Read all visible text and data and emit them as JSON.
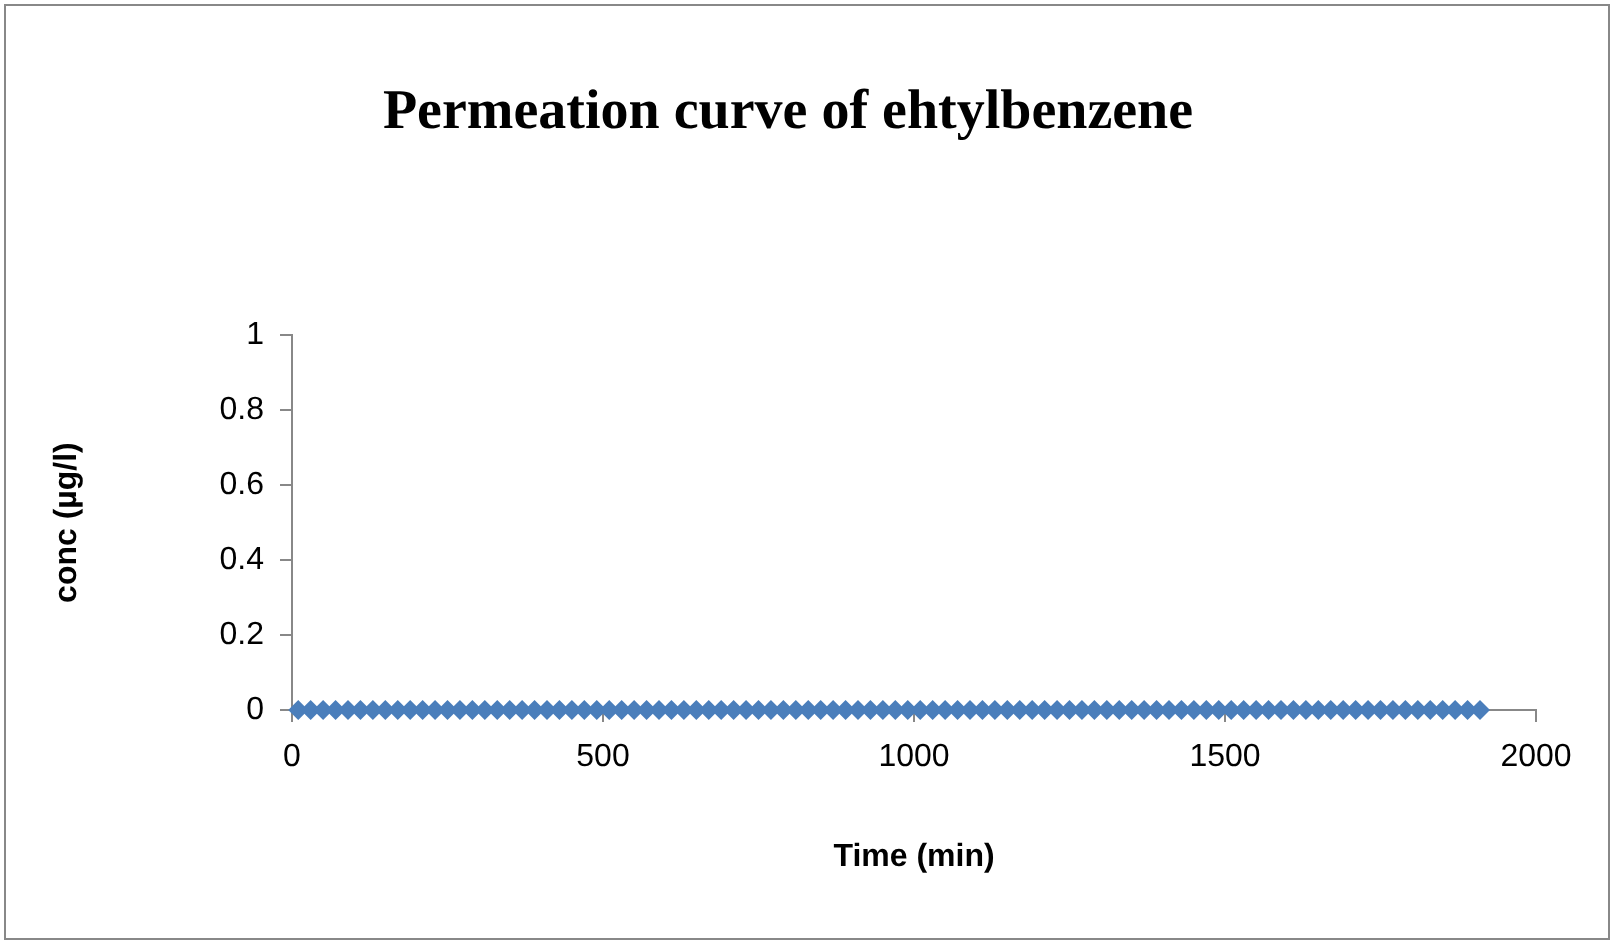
{
  "chart_data": {
    "type": "scatter",
    "title": "Permeation curve of ehtylbenzene",
    "xlabel": "Time (min)",
    "ylabel": "conc (µg/l)",
    "x": [
      10,
      30,
      50,
      70,
      90,
      110,
      130,
      150,
      170,
      190,
      210,
      230,
      250,
      270,
      290,
      310,
      330,
      350,
      370,
      390,
      410,
      430,
      450,
      470,
      490,
      510,
      530,
      550,
      570,
      590,
      610,
      630,
      650,
      670,
      690,
      710,
      730,
      750,
      770,
      790,
      810,
      830,
      850,
      870,
      890,
      910,
      930,
      950,
      970,
      990,
      1010,
      1030,
      1050,
      1070,
      1090,
      1110,
      1130,
      1150,
      1170,
      1190,
      1210,
      1230,
      1250,
      1270,
      1290,
      1310,
      1330,
      1350,
      1370,
      1390,
      1410,
      1430,
      1450,
      1470,
      1490,
      1510,
      1530,
      1550,
      1570,
      1590,
      1610,
      1630,
      1650,
      1670,
      1690,
      1710,
      1730,
      1750,
      1770,
      1790,
      1810,
      1830,
      1850,
      1870,
      1890,
      1910
    ],
    "series": [
      {
        "color": "#4a7ebb",
        "values": [
          0,
          0,
          0,
          0,
          0,
          0,
          0,
          0,
          0,
          0,
          0,
          0,
          0,
          0,
          0,
          0,
          0,
          0,
          0,
          0,
          0,
          0,
          0,
          0,
          0,
          0,
          0,
          0,
          0,
          0,
          0,
          0,
          0,
          0,
          0,
          0,
          0,
          0,
          0,
          0,
          0,
          0,
          0,
          0,
          0,
          0,
          0,
          0,
          0,
          0,
          0,
          0,
          0,
          0,
          0,
          0,
          0,
          0,
          0,
          0,
          0,
          0,
          0,
          0,
          0,
          0,
          0,
          0,
          0,
          0,
          0,
          0,
          0,
          0,
          0,
          0,
          0,
          0,
          0,
          0,
          0,
          0,
          0,
          0,
          0,
          0,
          0,
          0,
          0,
          0,
          0,
          0,
          0,
          0,
          0,
          0
        ]
      }
    ],
    "xlim": [
      0,
      2000
    ],
    "xticks": [
      0,
      500,
      1000,
      1500,
      2000
    ],
    "ylim": [
      0,
      1
    ],
    "yticks": [
      0,
      0.2,
      0.4,
      0.6,
      0.8,
      1
    ],
    "grid": false,
    "legend": false,
    "marker": "diamond"
  }
}
